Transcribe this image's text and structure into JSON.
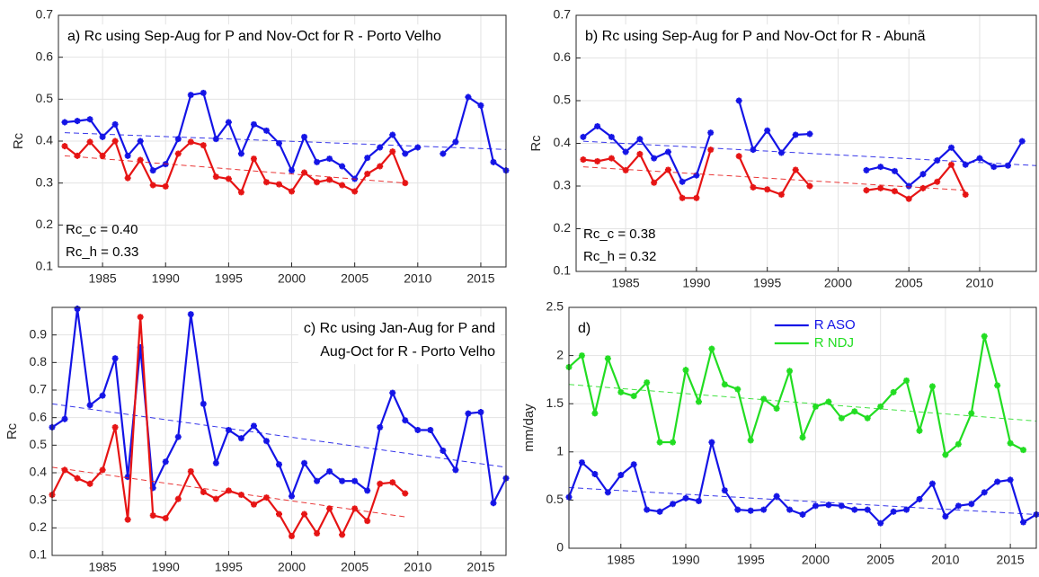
{
  "chart_data": [
    {
      "type": "line",
      "title": [
        "a) Rc using Sep-Aug for P and Nov-Oct for R - Porto Velho"
      ],
      "ylabel": "Rc",
      "x": [
        1982,
        1983,
        1984,
        1985,
        1986,
        1987,
        1988,
        1989,
        1990,
        1991,
        1992,
        1993,
        1994,
        1995,
        1996,
        1997,
        1998,
        1999,
        2000,
        2001,
        2002,
        2003,
        2004,
        2005,
        2006,
        2007,
        2008,
        2009,
        2010,
        2011,
        2012,
        2013,
        2014,
        2015,
        2016,
        2017
      ],
      "series": [
        {
          "color": "#1414e6",
          "values": [
            0.445,
            0.448,
            0.452,
            0.41,
            0.44,
            0.365,
            0.4,
            0.33,
            0.345,
            0.405,
            0.51,
            0.515,
            0.405,
            0.445,
            0.37,
            0.44,
            0.425,
            0.395,
            0.33,
            0.41,
            0.35,
            0.358,
            0.34,
            0.31,
            0.36,
            0.385,
            0.415,
            0.37,
            0.385,
            null,
            0.37,
            0.398,
            0.505,
            0.485,
            0.35,
            0.33
          ],
          "trend": {
            "x": [
              1982,
              2017
            ],
            "values": [
              0.42,
              0.38
            ]
          }
        },
        {
          "color": "#e61414",
          "values": [
            0.388,
            0.365,
            0.398,
            0.365,
            0.4,
            0.312,
            0.355,
            0.295,
            0.292,
            0.37,
            0.398,
            0.39,
            0.315,
            0.31,
            0.278,
            0.358,
            0.302,
            0.297,
            0.28,
            0.325,
            0.302,
            0.308,
            0.295,
            0.28,
            0.322,
            0.34,
            0.375,
            0.3,
            null,
            null,
            null,
            null,
            null,
            null,
            null,
            null
          ],
          "trend": {
            "x": [
              1982,
              2009
            ],
            "values": [
              0.365,
              0.3
            ]
          }
        }
      ],
      "annotations": [
        "Rc_c = 0.40",
        "Rc_h = 0.33"
      ],
      "xlim": [
        1981.5,
        2017
      ],
      "xticks": [
        1985,
        1990,
        1995,
        2000,
        2005,
        2010,
        2015
      ],
      "ylim": [
        0.1,
        0.7
      ],
      "yticks": [
        0.1,
        0.2,
        0.3,
        0.4,
        0.5,
        0.6,
        0.7
      ],
      "grid": true
    },
    {
      "type": "line",
      "title": [
        "b) Rc using Sep-Aug for P and Nov-Oct for R - Abunã"
      ],
      "ylabel": "Rc",
      "x": [
        1982,
        1983,
        1984,
        1985,
        1986,
        1987,
        1988,
        1989,
        1990,
        1991,
        1992,
        1993,
        1994,
        1995,
        1996,
        1997,
        1998,
        1999,
        2000,
        2001,
        2002,
        2003,
        2004,
        2005,
        2006,
        2007,
        2008,
        2009,
        2010,
        2011,
        2012,
        2013
      ],
      "series": [
        {
          "color": "#1414e6",
          "values": [
            0.415,
            0.44,
            0.415,
            0.38,
            0.41,
            0.365,
            0.38,
            0.31,
            0.325,
            0.425,
            null,
            0.5,
            0.385,
            0.43,
            0.378,
            0.42,
            0.422,
            null,
            null,
            null,
            0.337,
            0.345,
            0.335,
            0.3,
            0.328,
            0.36,
            0.39,
            0.35,
            0.365,
            0.345,
            0.348,
            0.405
          ],
          "trend": {
            "x": [
              1982,
              2014
            ],
            "values": [
              0.405,
              0.348
            ]
          }
        },
        {
          "color": "#e61414",
          "values": [
            0.362,
            0.358,
            0.365,
            0.337,
            0.375,
            0.308,
            0.338,
            0.272,
            0.272,
            0.385,
            null,
            0.37,
            0.297,
            0.292,
            0.28,
            0.338,
            0.3,
            null,
            null,
            null,
            0.29,
            0.295,
            0.288,
            0.27,
            0.295,
            0.31,
            0.35,
            0.28,
            null,
            null,
            null,
            null
          ],
          "trend": {
            "x": [
              1982,
              2009
            ],
            "values": [
              0.345,
              0.29
            ]
          }
        }
      ],
      "annotations": [
        "Rc_c = 0.38",
        "Rc_h = 0.32"
      ],
      "xlim": [
        1981.5,
        2014
      ],
      "xticks": [
        1985,
        1990,
        1995,
        2000,
        2005,
        2010
      ],
      "ylim": [
        0.1,
        0.7
      ],
      "yticks": [
        0.1,
        0.2,
        0.3,
        0.4,
        0.5,
        0.6,
        0.7
      ],
      "grid": true
    },
    {
      "type": "line",
      "title": [
        "c) Rc using Jan-Aug for P and",
        "Aug-Oct for R - Porto Velho"
      ],
      "ylabel": "Rc",
      "x": [
        1981,
        1982,
        1983,
        1984,
        1985,
        1986,
        1987,
        1988,
        1989,
        1990,
        1991,
        1992,
        1993,
        1994,
        1995,
        1996,
        1997,
        1998,
        1999,
        2000,
        2001,
        2002,
        2003,
        2004,
        2005,
        2006,
        2007,
        2008,
        2009,
        2010,
        2011,
        2012,
        2013,
        2014,
        2015,
        2016,
        2017
      ],
      "series": [
        {
          "color": "#1414e6",
          "values": [
            0.565,
            0.595,
            0.995,
            0.645,
            0.68,
            0.815,
            0.385,
            0.855,
            0.345,
            0.44,
            0.53,
            0.975,
            0.65,
            0.435,
            0.555,
            0.525,
            0.57,
            0.515,
            0.43,
            0.315,
            0.435,
            0.37,
            0.405,
            0.37,
            0.37,
            0.335,
            0.565,
            0.69,
            0.59,
            0.555,
            0.555,
            0.48,
            0.41,
            0.615,
            0.62,
            0.29,
            0.38
          ],
          "trend": {
            "x": [
              1981,
              2017
            ],
            "values": [
              0.65,
              0.42
            ]
          }
        },
        {
          "color": "#e61414",
          "values": [
            0.32,
            0.41,
            0.38,
            0.36,
            0.41,
            0.565,
            0.23,
            0.965,
            0.245,
            0.235,
            0.305,
            0.405,
            0.33,
            0.305,
            0.335,
            0.32,
            0.285,
            0.31,
            0.25,
            0.17,
            0.25,
            0.18,
            0.27,
            0.175,
            0.27,
            0.225,
            0.36,
            0.365,
            0.325,
            null,
            null,
            null,
            null,
            null,
            null,
            null,
            null
          ],
          "trend": {
            "x": [
              1981,
              2009
            ],
            "values": [
              0.42,
              0.24
            ]
          }
        }
      ],
      "xlim": [
        1981,
        2017
      ],
      "xticks": [
        1985,
        1990,
        1995,
        2000,
        2005,
        2010,
        2015
      ],
      "ylim": [
        0.1,
        1.0
      ],
      "yticks": [
        0.1,
        0.2,
        0.3,
        0.4,
        0.5,
        0.6,
        0.7,
        0.8,
        0.9
      ],
      "grid": true
    },
    {
      "type": "line",
      "title": [
        "d)"
      ],
      "ylabel": "mm/day",
      "legend": "top",
      "x": [
        1981,
        1982,
        1983,
        1984,
        1985,
        1986,
        1987,
        1988,
        1989,
        1990,
        1991,
        1992,
        1993,
        1994,
        1995,
        1996,
        1997,
        1998,
        1999,
        2000,
        2001,
        2002,
        2003,
        2004,
        2005,
        2006,
        2007,
        2008,
        2009,
        2010,
        2011,
        2012,
        2013,
        2014,
        2015,
        2016,
        2017
      ],
      "series": [
        {
          "name": "R ASO",
          "color": "#1414e6",
          "values": [
            0.53,
            0.89,
            0.77,
            0.58,
            0.76,
            0.87,
            0.4,
            0.38,
            0.46,
            0.52,
            0.49,
            1.1,
            0.6,
            0.4,
            0.39,
            0.4,
            0.54,
            0.4,
            0.35,
            0.44,
            0.45,
            0.44,
            0.4,
            0.4,
            0.26,
            0.38,
            0.4,
            0.51,
            0.67,
            0.33,
            0.44,
            0.46,
            0.58,
            0.69,
            0.71,
            0.27,
            0.35
          ],
          "trend": {
            "x": [
              1981,
              2017
            ],
            "values": [
              0.63,
              0.35
            ]
          }
        },
        {
          "name": "R NDJ",
          "color": "#22dd22",
          "values": [
            1.88,
            2.0,
            1.4,
            1.97,
            1.62,
            1.58,
            1.72,
            1.1,
            1.1,
            1.85,
            1.52,
            2.07,
            1.7,
            1.65,
            1.12,
            1.55,
            1.45,
            1.84,
            1.15,
            1.47,
            1.52,
            1.35,
            1.42,
            1.35,
            1.47,
            1.62,
            1.74,
            1.22,
            1.68,
            0.97,
            1.08,
            1.4,
            2.2,
            1.69,
            1.09,
            1.02,
            null
          ],
          "trend": {
            "x": [
              1981,
              2017
            ],
            "values": [
              1.7,
              1.32
            ]
          }
        }
      ],
      "xlim": [
        1981,
        2017
      ],
      "xticks": [
        1985,
        1990,
        1995,
        2000,
        2005,
        2010,
        2015
      ],
      "ylim": [
        0,
        2.5
      ],
      "yticks": [
        0,
        0.5,
        1,
        1.5,
        2,
        2.5
      ],
      "grid": true
    }
  ]
}
